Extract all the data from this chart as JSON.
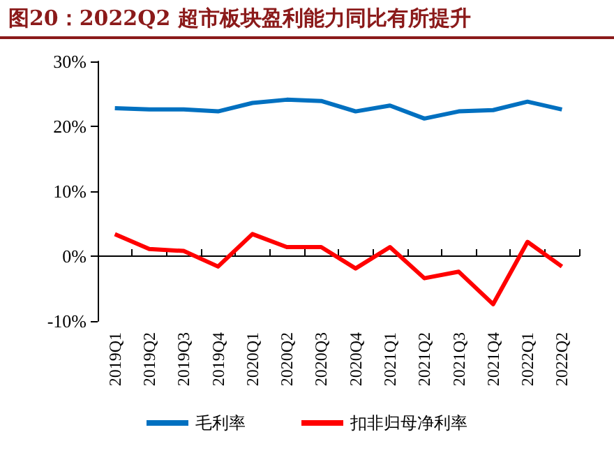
{
  "chart_data": {
    "type": "line",
    "title": "图20：2022Q2 超市板块盈利能力同比有所提升",
    "categories": [
      "2019Q1",
      "2019Q2",
      "2019Q3",
      "2019Q4",
      "2020Q1",
      "2020Q2",
      "2020Q3",
      "2020Q4",
      "2021Q1",
      "2021Q2",
      "2021Q3",
      "2021Q4",
      "2022Q1",
      "2022Q2"
    ],
    "series": [
      {
        "name": "毛利率",
        "color": "#0070c0",
        "values": [
          22.8,
          22.6,
          22.6,
          22.3,
          23.6,
          24.1,
          23.9,
          22.3,
          23.2,
          21.2,
          22.3,
          22.5,
          23.8,
          22.6
        ]
      },
      {
        "name": "扣非归母净利率",
        "color": "#ff0000",
        "values": [
          3.4,
          1.1,
          0.8,
          -1.6,
          3.4,
          1.4,
          1.4,
          -1.9,
          1.4,
          -3.4,
          -2.4,
          -7.4,
          2.2,
          -1.6
        ]
      }
    ],
    "ylim": [
      -10,
      30
    ],
    "yticks": [
      {
        "value": -10,
        "label": "-10%"
      },
      {
        "value": 0,
        "label": "0%"
      },
      {
        "value": 10,
        "label": "10%"
      },
      {
        "value": 20,
        "label": "20%"
      },
      {
        "value": 30,
        "label": "30%"
      }
    ],
    "legend": "bottom",
    "marker": "none",
    "line_style": "solid"
  }
}
